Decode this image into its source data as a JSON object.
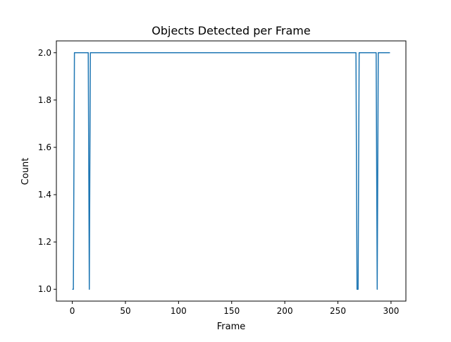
{
  "chart_data": {
    "type": "line",
    "title": "Objects Detected per Frame",
    "xlabel": "Frame",
    "ylabel": "Count",
    "xlim": [
      -15,
      314
    ],
    "ylim": [
      0.95,
      2.05
    ],
    "x_ticks": [
      0,
      50,
      100,
      150,
      200,
      250,
      300
    ],
    "x_tick_labels": [
      "0",
      "50",
      "100",
      "150",
      "200",
      "250",
      "300"
    ],
    "y_ticks": [
      1.0,
      1.2,
      1.4,
      1.6,
      1.8,
      2.0
    ],
    "y_tick_labels": [
      "1.0",
      "1.2",
      "1.4",
      "1.6",
      "1.8",
      "2.0"
    ],
    "grid": false,
    "legend": false,
    "line_color": "#1f77b4",
    "series": [
      {
        "x": [
          0,
          1,
          2,
          3,
          15,
          16,
          17,
          18,
          267,
          268,
          269,
          270,
          271,
          286,
          287,
          288,
          299
        ],
        "values": [
          1,
          1,
          2,
          2,
          2,
          1,
          2,
          2,
          2,
          1,
          1,
          2,
          2,
          2,
          1,
          2,
          2
        ]
      }
    ]
  }
}
